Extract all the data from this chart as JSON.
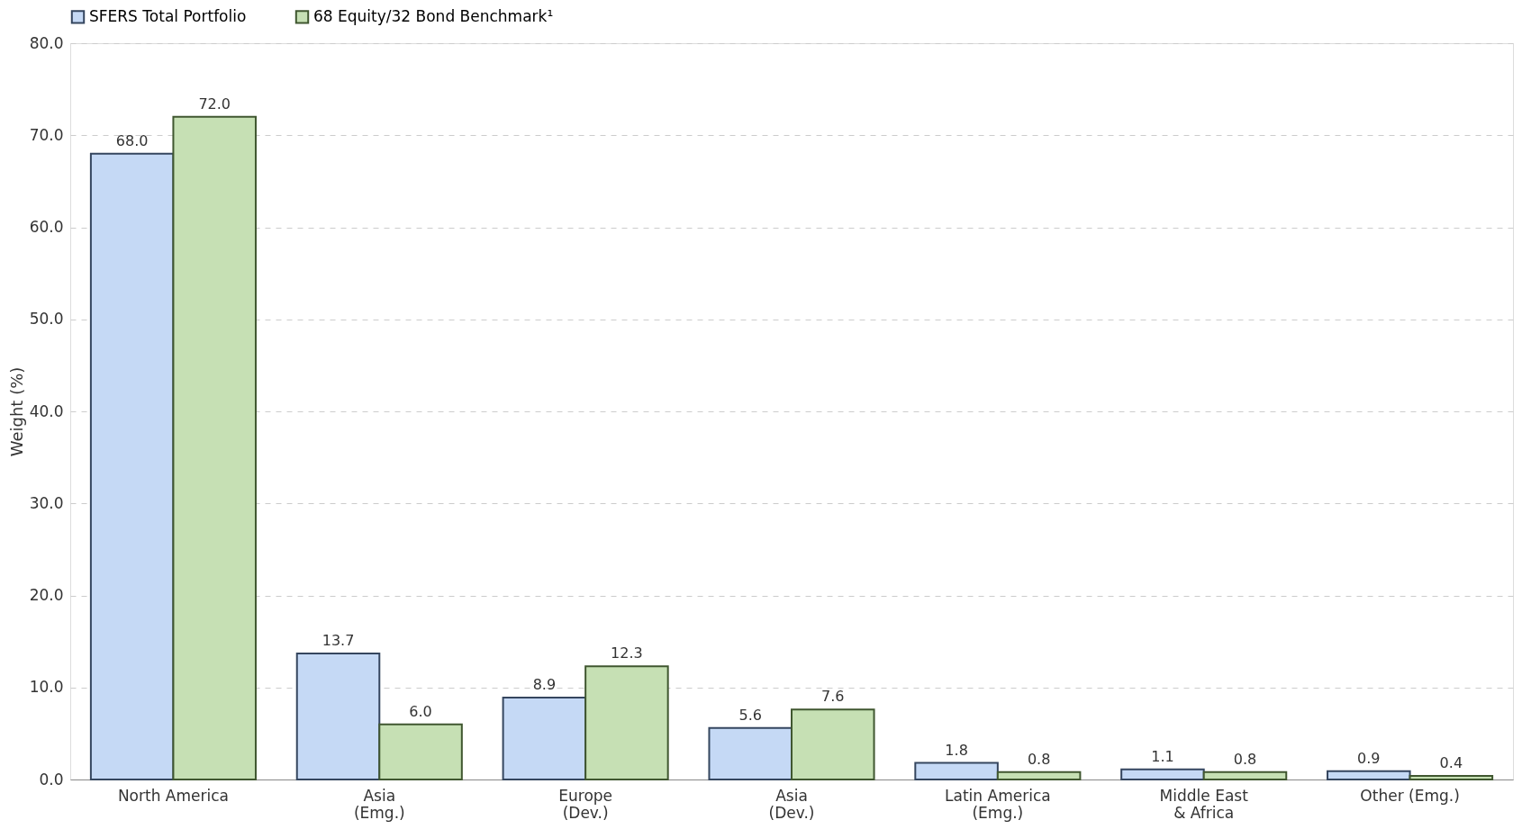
{
  "chart_data": {
    "type": "bar",
    "ylabel": "Weight (%)",
    "categories": [
      "North America",
      "Asia\n(Emg.)",
      "Europe\n(Dev.)",
      "Asia\n(Dev.)",
      "Latin America\n(Emg.)",
      "Middle East\n& Africa",
      "Other (Emg.)"
    ],
    "series": [
      {
        "name": "SFERS Total Portfolio",
        "color": "#c5d9f5",
        "values": [
          68.0,
          13.7,
          8.9,
          5.6,
          1.8,
          1.1,
          0.9
        ],
        "value_labels": [
          "68.0",
          "13.7",
          "8.9",
          "5.6",
          "1.8",
          "1.1",
          "0.9"
        ]
      },
      {
        "name": "68 Equity/32 Bond Benchmark¹",
        "color": "#c6e0b4",
        "values": [
          72.0,
          6.0,
          12.3,
          7.6,
          0.8,
          0.8,
          0.4
        ],
        "value_labels": [
          "72.0",
          "6.0",
          "12.3",
          "7.6",
          "0.8",
          "0.8",
          "0.4"
        ]
      }
    ],
    "ylim": [
      0,
      80
    ],
    "yticks": [
      {
        "value": 0,
        "label": "0.0"
      },
      {
        "value": 10,
        "label": "10.0"
      },
      {
        "value": 20,
        "label": "20.0"
      },
      {
        "value": 30,
        "label": "30.0"
      },
      {
        "value": 40,
        "label": "40.0"
      },
      {
        "value": 50,
        "label": "50.0"
      },
      {
        "value": 60,
        "label": "60.0"
      },
      {
        "value": 70,
        "label": "70.0"
      },
      {
        "value": 80,
        "label": "80.0"
      }
    ],
    "grid": "y",
    "legend": "top"
  }
}
